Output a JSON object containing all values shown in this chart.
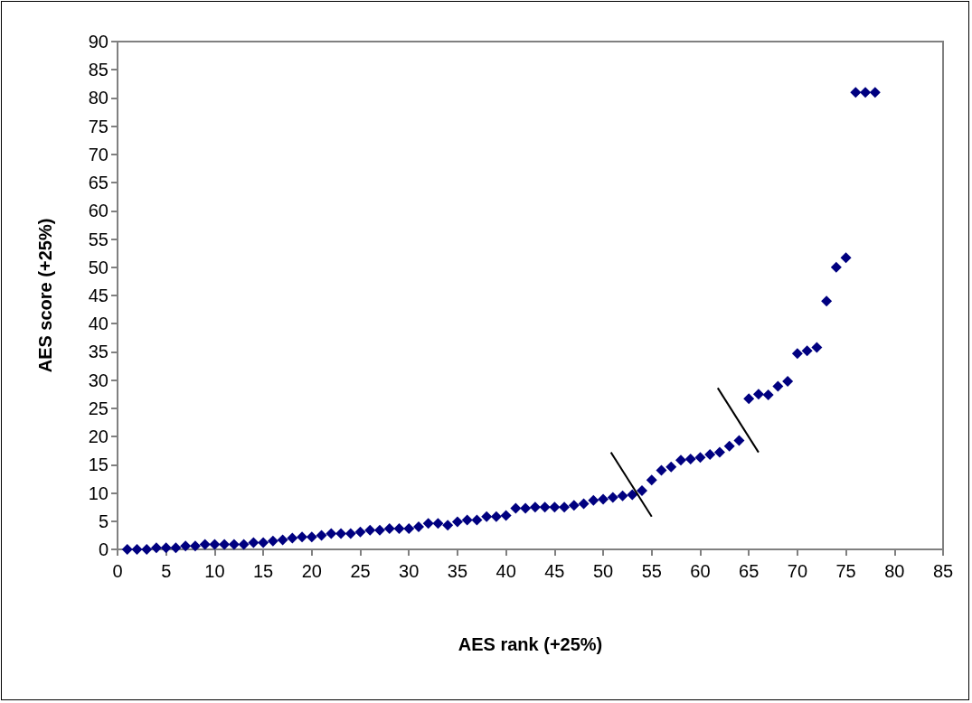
{
  "chart_data": {
    "type": "scatter",
    "xlabel": "AES rank (+25%)",
    "ylabel": "AES score (+25%)",
    "x": [
      1,
      2,
      3,
      4,
      5,
      6,
      7,
      8,
      9,
      10,
      11,
      12,
      13,
      14,
      15,
      16,
      17,
      18,
      19,
      20,
      21,
      22,
      23,
      24,
      25,
      26,
      27,
      28,
      29,
      30,
      31,
      32,
      33,
      34,
      35,
      36,
      37,
      38,
      39,
      40,
      41,
      42,
      43,
      44,
      45,
      46,
      47,
      48,
      49,
      50,
      51,
      52,
      53,
      54,
      55,
      56,
      57,
      58,
      59,
      60,
      61,
      62,
      63,
      64,
      65,
      66,
      67,
      68,
      69,
      70,
      71,
      72,
      73,
      74,
      75,
      76,
      77,
      78
    ],
    "series": [
      {
        "color": "#000080",
        "values": [
          0,
          0,
          0,
          0.3,
          0.3,
          0.3,
          0.6,
          0.6,
          0.9,
          0.9,
          0.9,
          0.9,
          0.9,
          1.2,
          1.2,
          1.5,
          1.7,
          2.0,
          2.2,
          2.2,
          2.5,
          2.8,
          2.8,
          2.8,
          3.1,
          3.4,
          3.4,
          3.7,
          3.7,
          3.7,
          4.0,
          4.6,
          4.6,
          4.3,
          4.9,
          5.2,
          5.2,
          5.8,
          5.8,
          6.0,
          7.3,
          7.3,
          7.5,
          7.5,
          7.5,
          7.5,
          7.8,
          8.1,
          8.7,
          8.9,
          9.2,
          9.5,
          9.7,
          10.4,
          12.3,
          14.0,
          14.6,
          15.8,
          16.0,
          16.3,
          16.8,
          17.2,
          18.3,
          19.3,
          26.7,
          27.5,
          27.4,
          28.9,
          29.8,
          34.7,
          35.2,
          35.8,
          44.0,
          50.0,
          51.7,
          81.0,
          81.0,
          81.0
        ]
      }
    ],
    "xlim": [
      0,
      85
    ],
    "xticks": [
      0,
      5,
      10,
      15,
      20,
      25,
      30,
      35,
      40,
      45,
      50,
      55,
      60,
      65,
      70,
      75,
      80,
      85
    ],
    "ylim": [
      0,
      90
    ],
    "yticks": [
      0,
      5,
      10,
      15,
      20,
      25,
      30,
      35,
      40,
      45,
      50,
      55,
      60,
      65,
      70,
      75,
      80,
      85,
      90
    ],
    "marker": "diamond",
    "grid": false
  }
}
